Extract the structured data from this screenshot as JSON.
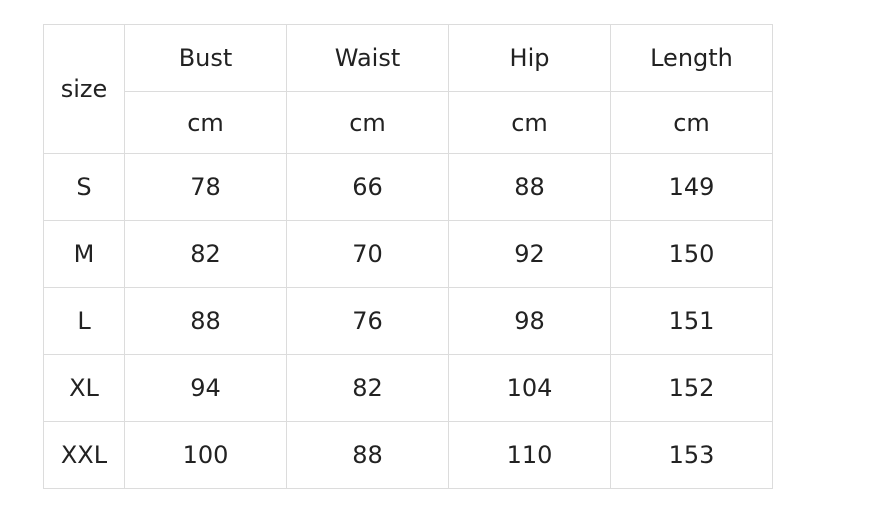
{
  "table": {
    "size_label": "size",
    "columns": [
      {
        "name": "Bust",
        "unit": "cm"
      },
      {
        "name": "Waist",
        "unit": "cm"
      },
      {
        "name": "Hip",
        "unit": "cm"
      },
      {
        "name": "Length",
        "unit": "cm"
      }
    ],
    "rows": [
      {
        "size": "S",
        "values": [
          "78",
          "66",
          "88",
          "149"
        ]
      },
      {
        "size": "M",
        "values": [
          "82",
          "70",
          "92",
          "150"
        ]
      },
      {
        "size": "L",
        "values": [
          "88",
          "76",
          "98",
          "151"
        ]
      },
      {
        "size": "XL",
        "values": [
          "94",
          "82",
          "104",
          "152"
        ]
      },
      {
        "size": "XXL",
        "values": [
          "100",
          "88",
          "110",
          "153"
        ]
      }
    ]
  }
}
